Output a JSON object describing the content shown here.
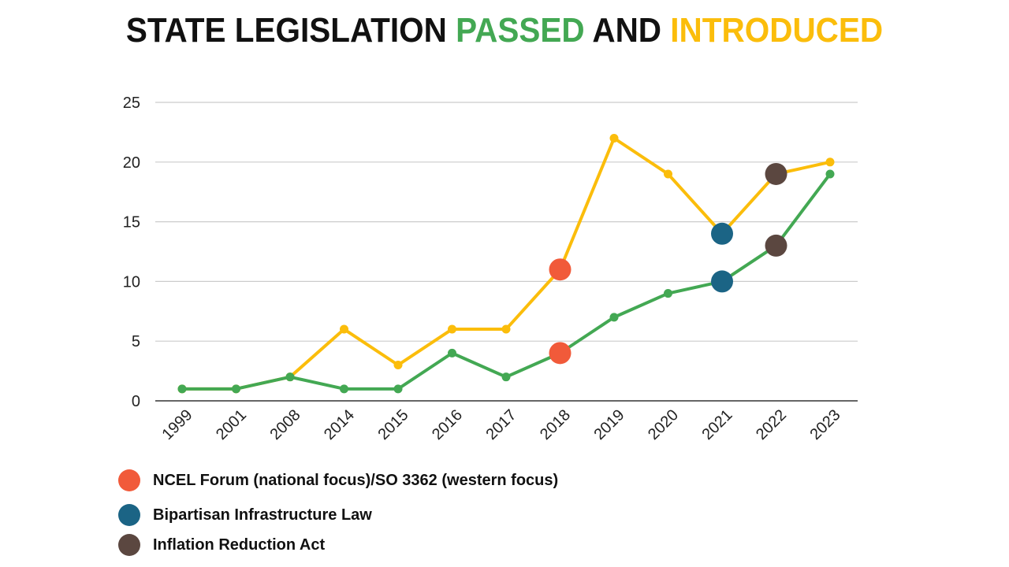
{
  "title": {
    "part1": "STATE LEGISLATION ",
    "part2": "PASSED",
    "part3": " AND ",
    "part4": "INTRODUCED"
  },
  "chart_data": {
    "type": "line",
    "categories": [
      "1999",
      "2001",
      "2008",
      "2014",
      "2015",
      "2016",
      "2017",
      "2018",
      "2019",
      "2020",
      "2021",
      "2022",
      "2023"
    ],
    "series": [
      {
        "key": "introduced",
        "color": "#fbbd0b",
        "values": [
          1,
          1,
          2,
          6,
          3,
          6,
          6,
          11,
          22,
          19,
          14,
          19,
          20
        ]
      },
      {
        "key": "passed",
        "color": "#43a853",
        "values": [
          1,
          1,
          2,
          1,
          1,
          4,
          2,
          4,
          7,
          9,
          10,
          13,
          19
        ]
      }
    ],
    "ylim": [
      0,
      25
    ],
    "yticks": [
      0,
      5,
      10,
      15,
      20,
      25
    ],
    "grid": true,
    "event_markers": [
      {
        "year": "2018",
        "event": 0
      },
      {
        "year": "2021",
        "event": 1
      },
      {
        "year": "2022",
        "event": 2
      }
    ]
  },
  "legend": [
    {
      "label": "NCEL Forum (national focus)/SO 3362 (western focus)",
      "color": "#f15a3a"
    },
    {
      "label": "Bipartisan Infrastructure Law",
      "color": "#1b6485"
    },
    {
      "label": "Inflation Reduction Act",
      "color": "#5b4740"
    }
  ]
}
